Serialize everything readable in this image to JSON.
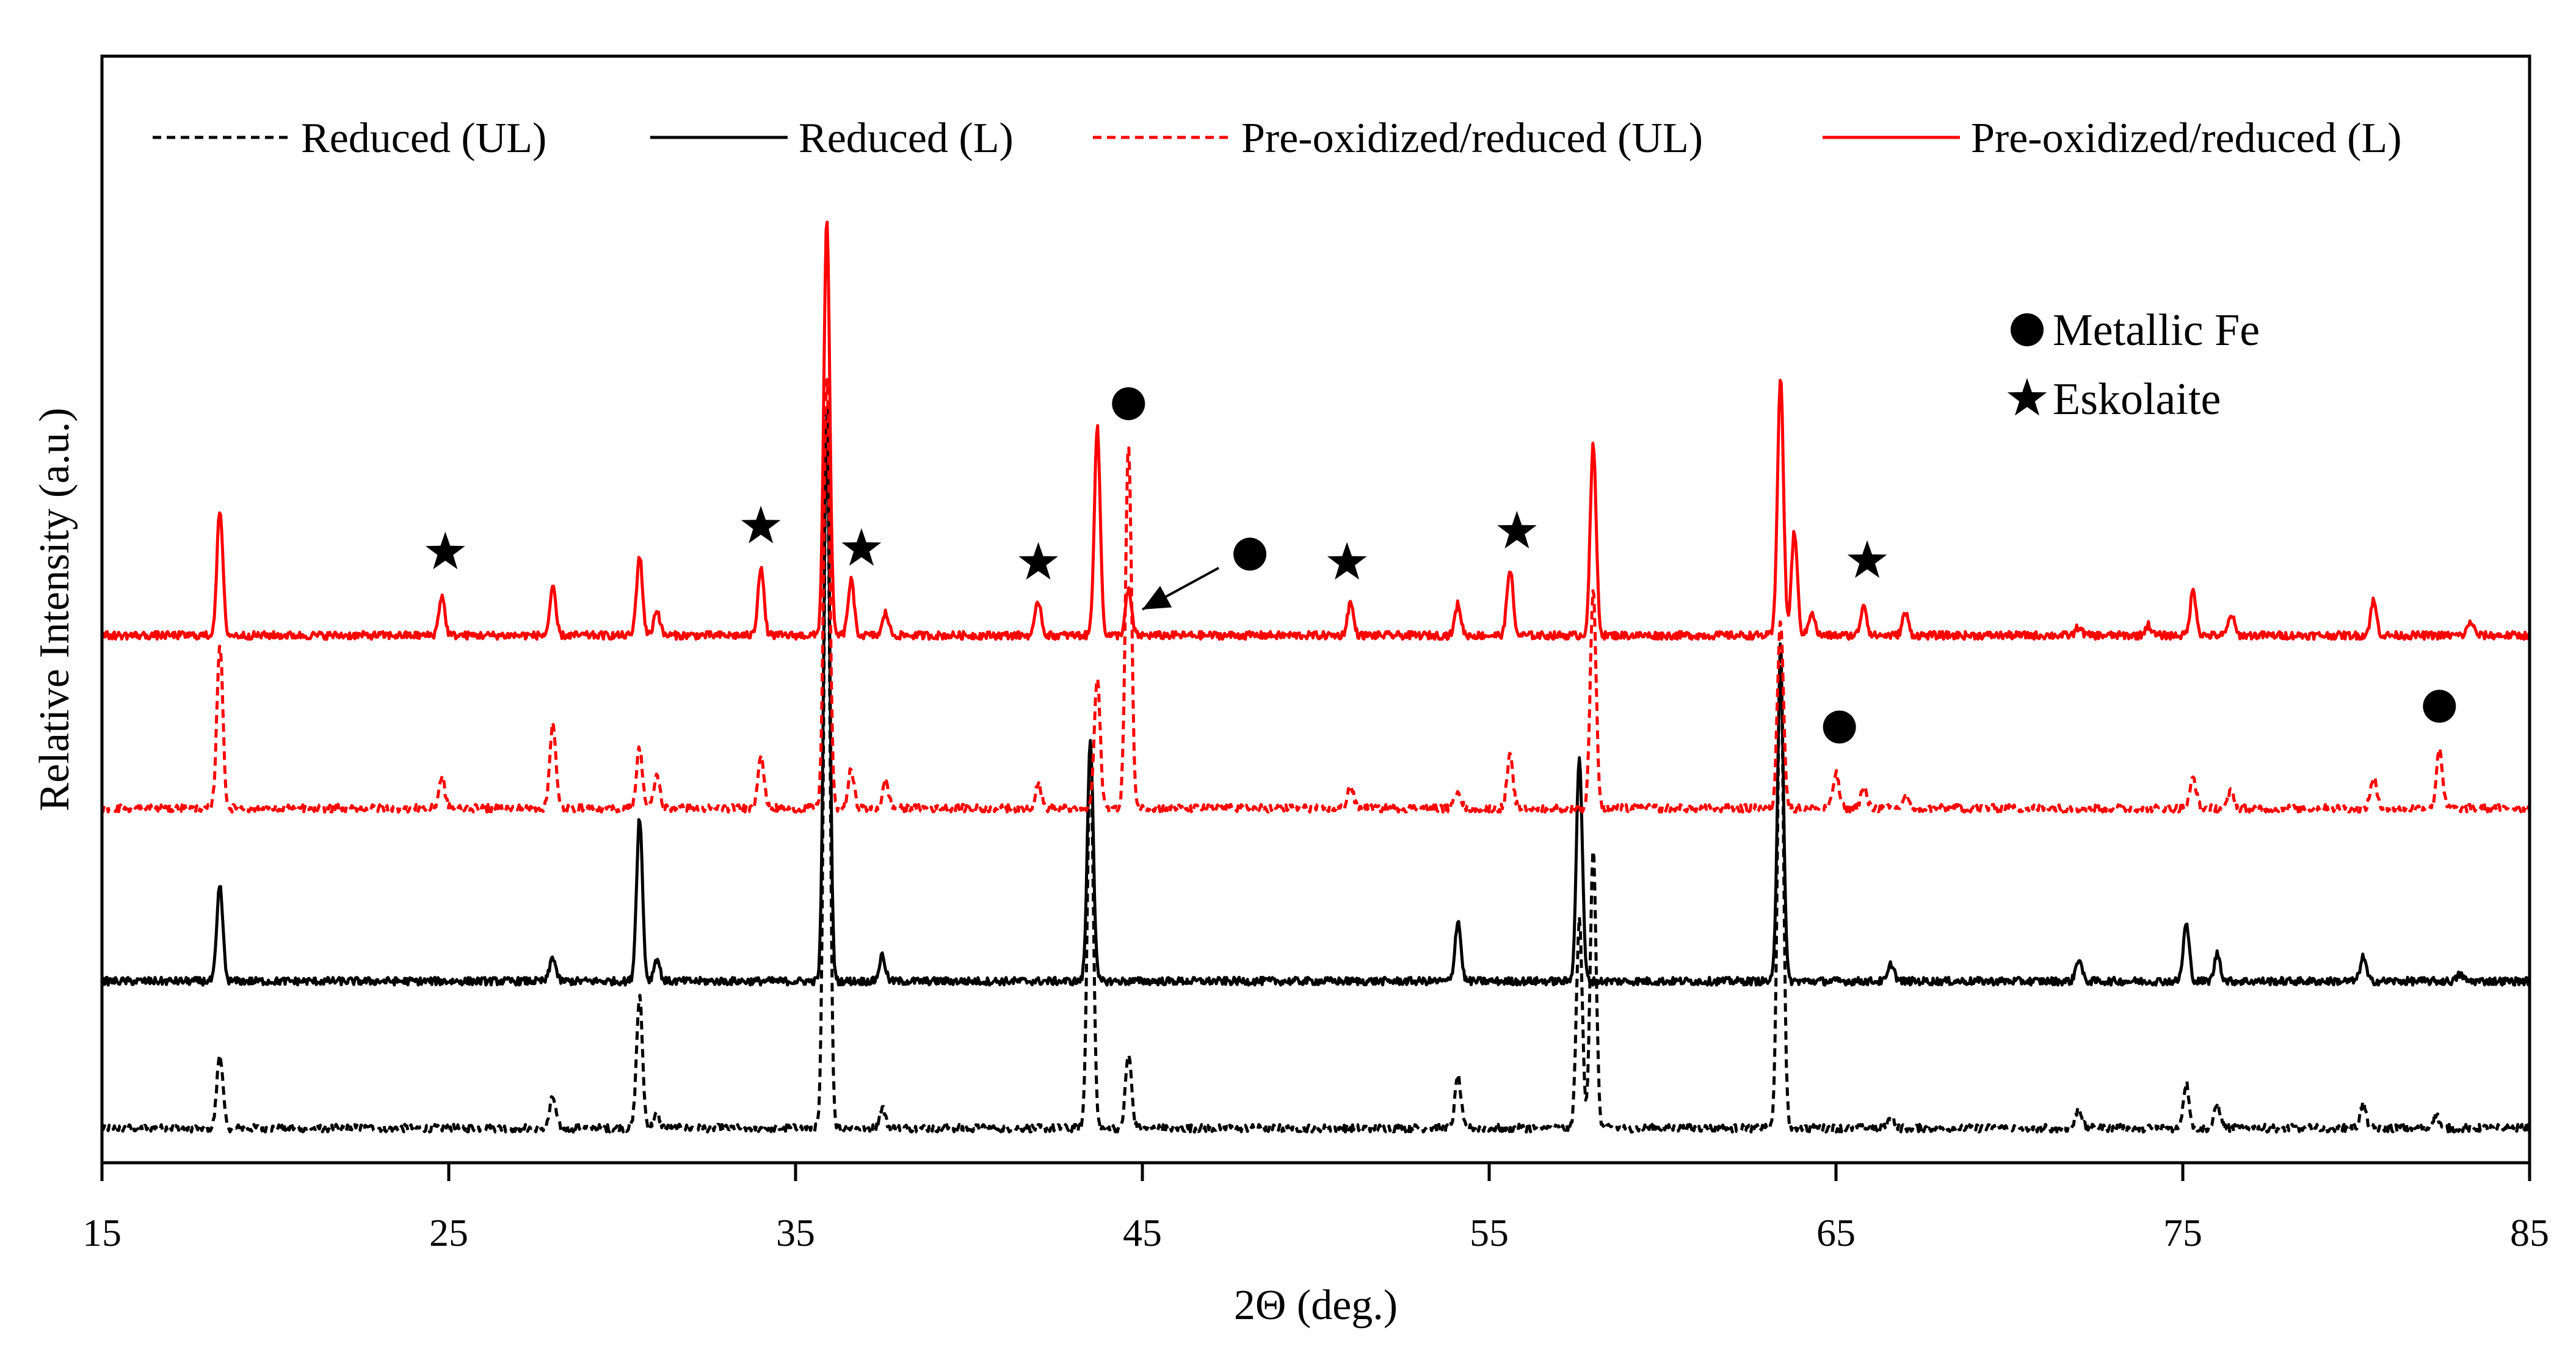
{
  "chart_data": {
    "type": "line",
    "title": "",
    "xlabel": "2Θ (deg.)",
    "ylabel": "Relative Intensity (a.u.)",
    "xlim": [
      15,
      85
    ],
    "ylim": [
      -2,
      62
    ],
    "xticks": [
      15,
      25,
      35,
      45,
      55,
      65,
      75,
      85
    ],
    "xtick_labels": [
      "15",
      "25",
      "35",
      "45",
      "55",
      "65",
      "75",
      "85"
    ],
    "grid": false,
    "legend_position": "top",
    "series": [
      {
        "name": "Reduced (UL)",
        "color": "#000000",
        "dash": "dashed",
        "baseline": 0,
        "peaks": [
          [
            18.4,
            4.3
          ],
          [
            28.0,
            1.8
          ],
          [
            30.5,
            7.6
          ],
          [
            31.0,
            0.8
          ],
          [
            35.9,
            42.0
          ],
          [
            37.5,
            1.2
          ],
          [
            43.5,
            22.0
          ],
          [
            44.6,
            4.3
          ],
          [
            54.1,
            3.0
          ],
          [
            57.6,
            12.0
          ],
          [
            58.0,
            16.0
          ],
          [
            63.4,
            28.0
          ],
          [
            66.6,
            0.7
          ],
          [
            72.0,
            1.2
          ],
          [
            75.1,
            2.6
          ],
          [
            76.0,
            1.4
          ],
          [
            80.2,
            1.4
          ],
          [
            82.3,
            0.8
          ]
        ]
      },
      {
        "name": "Reduced (L)",
        "color": "#000000",
        "dash": "solid",
        "baseline": 8.5,
        "peaks": [
          [
            18.4,
            5.5
          ],
          [
            28.0,
            1.4
          ],
          [
            30.5,
            9.5
          ],
          [
            31.0,
            1.3
          ],
          [
            35.9,
            33.0
          ],
          [
            37.5,
            1.5
          ],
          [
            43.5,
            14.0
          ],
          [
            54.1,
            3.5
          ],
          [
            57.6,
            13.0
          ],
          [
            63.4,
            18.5
          ],
          [
            66.6,
            1.0
          ],
          [
            72.0,
            1.3
          ],
          [
            75.1,
            3.3
          ],
          [
            76.0,
            1.6
          ],
          [
            80.2,
            1.4
          ],
          [
            83.0,
            0.4
          ]
        ]
      },
      {
        "name": "Pre-oxidized/reduced (UL)",
        "color": "#ff0000",
        "dash": "dashed",
        "baseline": 18.5,
        "peaks": [
          [
            18.4,
            9.5
          ],
          [
            24.8,
            1.8
          ],
          [
            28.0,
            5.0
          ],
          [
            30.5,
            3.5
          ],
          [
            31.0,
            1.9
          ],
          [
            34.0,
            3.2
          ],
          [
            35.9,
            25.0
          ],
          [
            36.6,
            2.2
          ],
          [
            37.6,
            1.5
          ],
          [
            42.0,
            1.5
          ],
          [
            43.7,
            7.5
          ],
          [
            44.6,
            21.0
          ],
          [
            51.0,
            1.3
          ],
          [
            54.1,
            1.1
          ],
          [
            55.6,
            3.0
          ],
          [
            58.0,
            12.5
          ],
          [
            63.4,
            11.0
          ],
          [
            65.0,
            2.0
          ],
          [
            65.8,
            1.2
          ],
          [
            67.0,
            0.6
          ],
          [
            75.3,
            1.8
          ],
          [
            76.4,
            1.0
          ],
          [
            80.5,
            1.8
          ],
          [
            82.4,
            3.5
          ]
        ]
      },
      {
        "name": "Pre-oxidized/reduced (L)",
        "color": "#ff0000",
        "dash": "solid",
        "baseline": 28.5,
        "peaks": [
          [
            18.4,
            7.2
          ],
          [
            24.8,
            2.3
          ],
          [
            28.0,
            2.7
          ],
          [
            30.5,
            4.6
          ],
          [
            31.0,
            1.5
          ],
          [
            34.0,
            4.0
          ],
          [
            35.9,
            24.0
          ],
          [
            36.6,
            3.2
          ],
          [
            37.6,
            1.3
          ],
          [
            42.0,
            2.0
          ],
          [
            43.7,
            12.0
          ],
          [
            44.6,
            2.6
          ],
          [
            51.0,
            1.9
          ],
          [
            54.1,
            1.8
          ],
          [
            55.6,
            3.9
          ],
          [
            58.0,
            11.0
          ],
          [
            63.4,
            15.0
          ],
          [
            63.8,
            6.0
          ],
          [
            64.3,
            1.4
          ],
          [
            65.8,
            1.8
          ],
          [
            67.0,
            1.3
          ],
          [
            72.0,
            0.5
          ],
          [
            74.0,
            0.6
          ],
          [
            75.3,
            2.6
          ],
          [
            76.4,
            1.2
          ],
          [
            80.5,
            2.0
          ],
          [
            83.3,
            0.8
          ]
        ]
      }
    ],
    "annotation_legend": [
      {
        "symbol": "circle",
        "label": "Metallic  Fe"
      },
      {
        "symbol": "star",
        "label": "Eskolaite"
      }
    ],
    "markers": [
      {
        "symbol": "star",
        "x": 24.9,
        "y": 33.3
      },
      {
        "symbol": "star",
        "x": 34.0,
        "y": 34.8
      },
      {
        "symbol": "star",
        "x": 36.9,
        "y": 33.5
      },
      {
        "symbol": "star",
        "x": 42.0,
        "y": 32.7
      },
      {
        "symbol": "star",
        "x": 50.9,
        "y": 32.7
      },
      {
        "symbol": "star",
        "x": 55.8,
        "y": 34.5
      },
      {
        "symbol": "star",
        "x": 65.9,
        "y": 32.8
      },
      {
        "symbol": "circle",
        "x": 44.6,
        "y": 41.9
      },
      {
        "symbol": "circle",
        "x": 48.1,
        "y": 33.2
      },
      {
        "symbol": "circle",
        "x": 65.1,
        "y": 23.2
      },
      {
        "symbol": "circle",
        "x": 82.4,
        "y": 24.4
      }
    ],
    "arrow": {
      "from": [
        47.2,
        32.4
      ],
      "to": [
        45.0,
        30.0
      ]
    }
  }
}
